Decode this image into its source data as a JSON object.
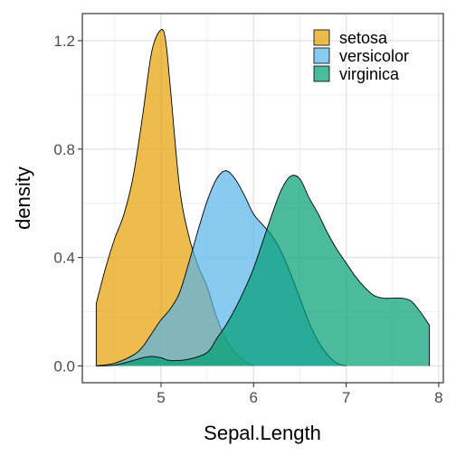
{
  "chart_data": {
    "type": "area",
    "title": "",
    "xlabel": "Sepal.Length",
    "ylabel": "density",
    "xlim": [
      4.15,
      8.05
    ],
    "ylim": [
      -0.062,
      1.3
    ],
    "x_ticks": [
      5,
      6,
      7,
      8
    ],
    "x_tick_labels": [
      "5",
      "6",
      "7",
      "8"
    ],
    "y_ticks": [
      0.0,
      0.4,
      0.8,
      1.2
    ],
    "y_tick_labels": [
      "0.0",
      "0.4",
      "0.8",
      "1.2"
    ],
    "grid": true,
    "legend_position": "top-right",
    "series": [
      {
        "name": "setosa",
        "color": "#E69F00",
        "x": [
          4.3,
          4.4,
          4.5,
          4.6,
          4.7,
          4.8,
          4.9,
          5.0,
          5.05,
          5.1,
          5.2,
          5.3,
          5.4,
          5.5,
          5.6,
          5.7,
          5.8,
          5.9,
          6.0
        ],
        "y": [
          0.23,
          0.36,
          0.47,
          0.56,
          0.7,
          0.92,
          1.16,
          1.24,
          1.2,
          1.03,
          0.66,
          0.48,
          0.37,
          0.29,
          0.18,
          0.1,
          0.05,
          0.02,
          0.0
        ]
      },
      {
        "name": "versicolor",
        "color": "#56B4E9",
        "x": [
          4.3,
          4.5,
          4.7,
          4.8,
          4.9,
          5.0,
          5.1,
          5.2,
          5.3,
          5.4,
          5.5,
          5.6,
          5.7,
          5.8,
          5.9,
          6.0,
          6.1,
          6.2,
          6.3,
          6.4,
          6.5,
          6.6,
          6.7,
          6.8,
          6.9,
          7.0
        ],
        "y": [
          0.0,
          0.01,
          0.04,
          0.07,
          0.12,
          0.17,
          0.21,
          0.27,
          0.38,
          0.5,
          0.61,
          0.69,
          0.72,
          0.69,
          0.63,
          0.56,
          0.52,
          0.48,
          0.42,
          0.34,
          0.25,
          0.16,
          0.09,
          0.04,
          0.01,
          0.0
        ]
      },
      {
        "name": "virginica",
        "color": "#009E73",
        "x": [
          4.3,
          4.5,
          4.7,
          4.8,
          4.9,
          5.0,
          5.1,
          5.3,
          5.5,
          5.6,
          5.7,
          5.8,
          5.9,
          6.0,
          6.1,
          6.2,
          6.3,
          6.4,
          6.5,
          6.6,
          6.7,
          6.8,
          6.9,
          7.0,
          7.1,
          7.2,
          7.3,
          7.4,
          7.5,
          7.6,
          7.7,
          7.8,
          7.9
        ],
        "y": [
          0.0,
          0.003,
          0.02,
          0.03,
          0.035,
          0.03,
          0.02,
          0.025,
          0.05,
          0.1,
          0.15,
          0.21,
          0.28,
          0.36,
          0.46,
          0.56,
          0.65,
          0.7,
          0.69,
          0.62,
          0.56,
          0.49,
          0.43,
          0.38,
          0.33,
          0.29,
          0.26,
          0.25,
          0.25,
          0.25,
          0.24,
          0.2,
          0.15
        ]
      }
    ]
  }
}
